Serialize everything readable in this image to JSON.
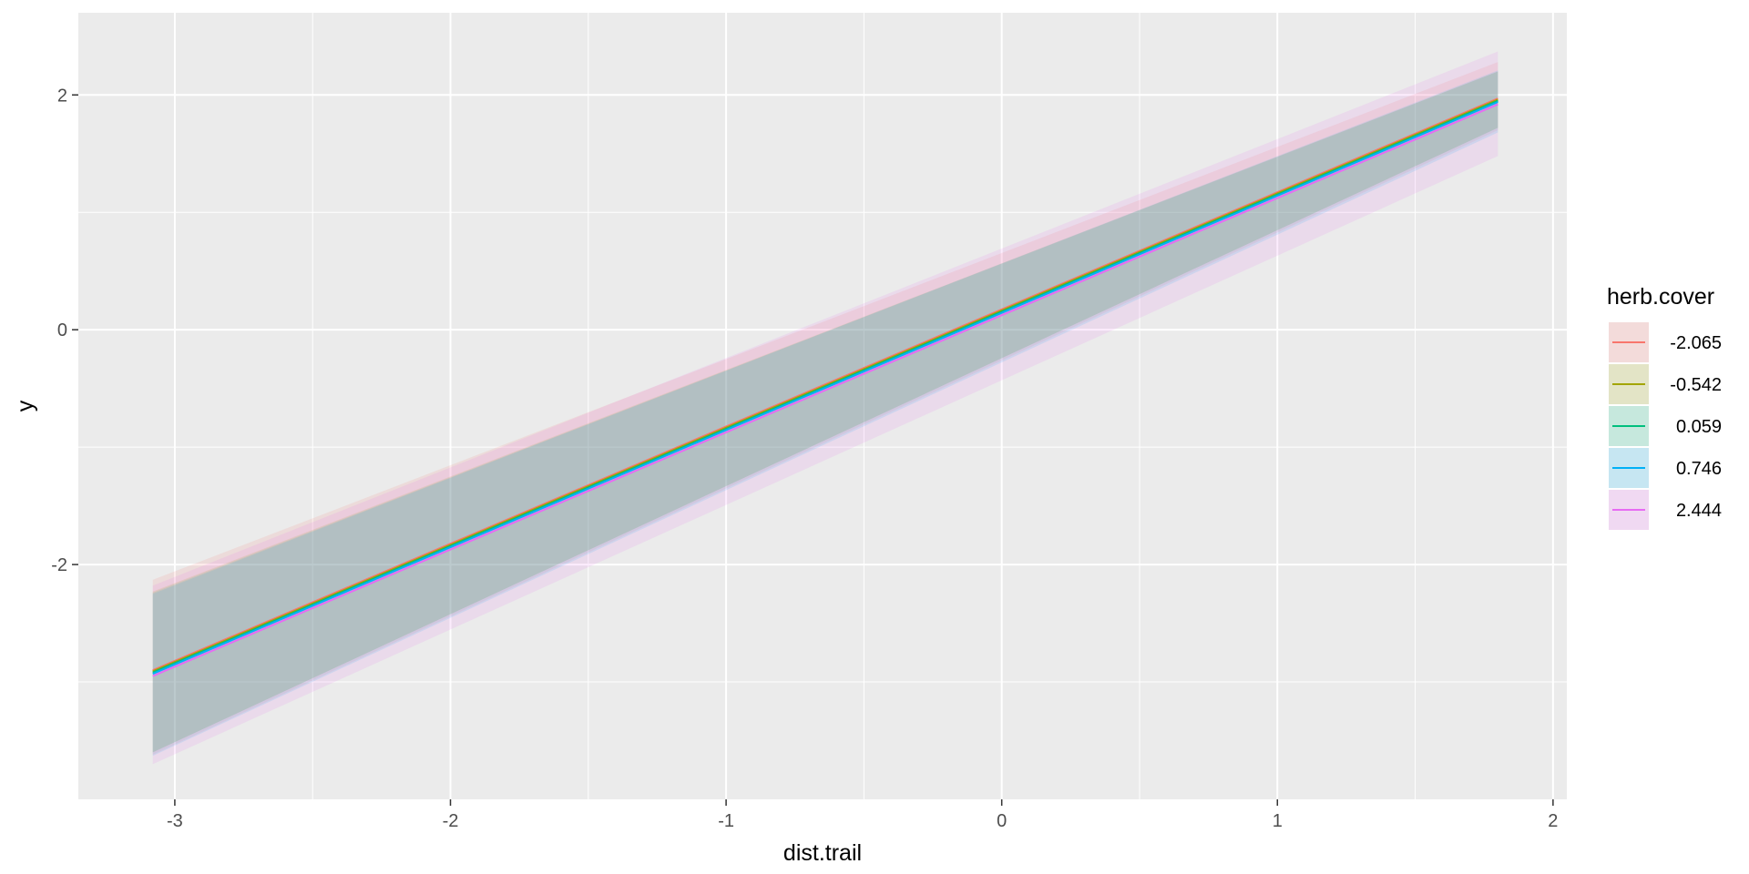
{
  "chart_data": {
    "type": "line",
    "title": "",
    "xlabel": "dist.trail",
    "ylabel": "y",
    "xlim": [
      -3.35,
      2.05
    ],
    "ylim": [
      -4.0,
      2.7
    ],
    "x_ticks": [
      -3,
      -2,
      -1,
      0,
      1,
      2
    ],
    "x_tick_labels": [
      "-3",
      "-2",
      "-1",
      "0",
      "1",
      "2"
    ],
    "y_ticks": [
      -2,
      0,
      2
    ],
    "y_tick_labels": [
      "-2",
      "0",
      "2"
    ],
    "grid": true,
    "legend": {
      "title": "herb.cover",
      "placement": "right"
    },
    "x": [
      -3.08,
      1.8
    ],
    "series": [
      {
        "name": "-2.065",
        "color": "#F8766D",
        "values": [
          -2.9,
          1.97
        ],
        "lower": [
          -3.62,
          1.7
        ],
        "upper": [
          -2.13,
          2.28
        ]
      },
      {
        "name": "-0.542",
        "color": "#A3A500",
        "values": [
          -2.91,
          1.96
        ],
        "lower": [
          -3.6,
          1.72
        ],
        "upper": [
          -2.23,
          2.2
        ]
      },
      {
        "name": "0.059",
        "color": "#00BF7D",
        "values": [
          -2.92,
          1.95
        ],
        "lower": [
          -3.6,
          1.72
        ],
        "upper": [
          -2.24,
          2.2
        ]
      },
      {
        "name": "0.746",
        "color": "#00B0F6",
        "values": [
          -2.93,
          1.94
        ],
        "lower": [
          -3.63,
          1.68
        ],
        "upper": [
          -2.25,
          2.21
        ]
      },
      {
        "name": "2.444",
        "color": "#E76BF3",
        "values": [
          -2.95,
          1.92
        ],
        "lower": [
          -3.7,
          1.48
        ],
        "upper": [
          -2.18,
          2.37
        ]
      }
    ]
  }
}
